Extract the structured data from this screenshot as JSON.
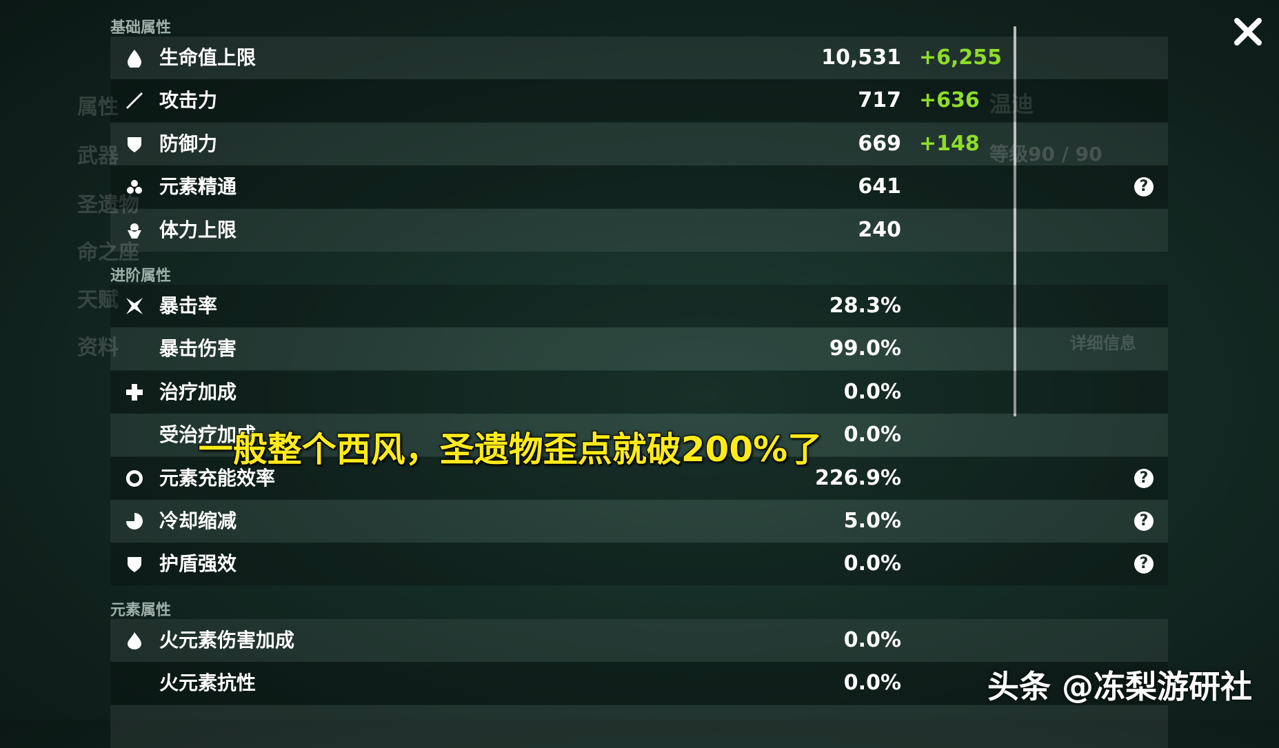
{
  "sections": [
    {
      "title": "基础属性",
      "rows": [
        {
          "label": "生命值上限",
          "value": "10,531",
          "bonus": "+6,255"
        },
        {
          "label": "攻击力",
          "value": "717",
          "bonus": "+636"
        },
        {
          "label": "防御力",
          "value": "669",
          "bonus": "+148"
        },
        {
          "label": "元素精通",
          "value": "641",
          "help": "?"
        },
        {
          "label": "体力上限",
          "value": "240"
        }
      ]
    },
    {
      "title": "进阶属性",
      "rows": [
        {
          "label": "暴击率",
          "value": "28.3%"
        },
        {
          "label": "暴击伤害",
          "value": "99.0%"
        },
        {
          "label": "治疗加成",
          "value": "0.0%"
        },
        {
          "label": "受治疗加成",
          "value": "0.0%"
        },
        {
          "label": "元素充能效率",
          "value": "226.9%",
          "help": "?"
        },
        {
          "label": "冷却缩减",
          "value": "5.0%",
          "help": "?"
        },
        {
          "label": "护盾强效",
          "value": "0.0%",
          "help": "?"
        }
      ]
    },
    {
      "title": "元素属性",
      "rows": [
        {
          "label": "火元素伤害加成",
          "value": "0.0%"
        },
        {
          "label": "火元素抗性",
          "value": "0.0%"
        }
      ]
    }
  ],
  "menu": [
    "属性",
    "武器",
    "圣遗物",
    "命之座",
    "天赋",
    "资料"
  ],
  "character": {
    "name": "温迪",
    "level": "等级90 / 90",
    "details": "详细信息"
  },
  "subtitle": "一般整个西风，圣遗物歪点就破200%了",
  "watermark": "头条 @冻梨游研社"
}
